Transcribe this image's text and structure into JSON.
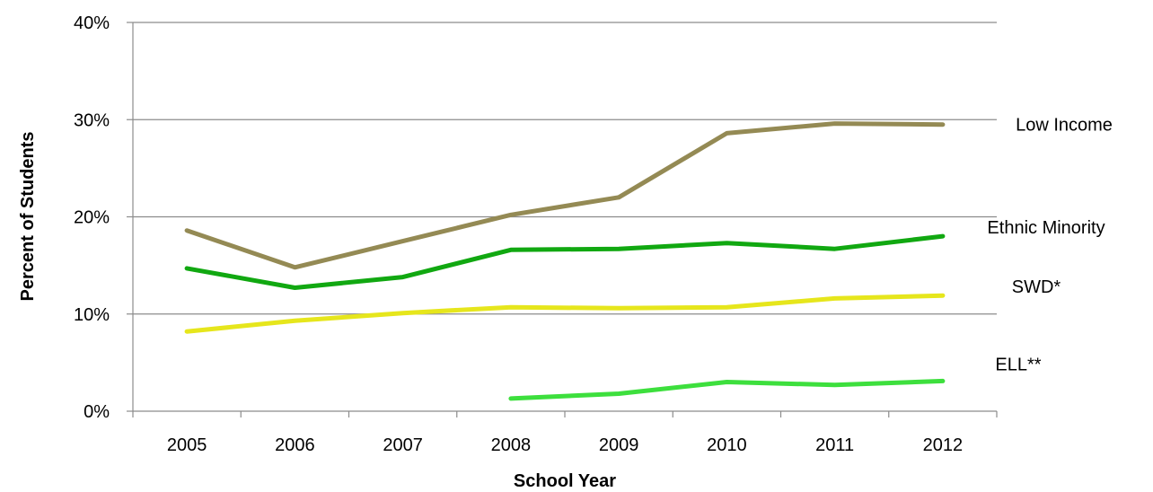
{
  "chart_data": {
    "type": "line",
    "title": "",
    "xlabel": "School Year",
    "ylabel": "Percent of Students",
    "categories": [
      "2005",
      "2006",
      "2007",
      "2008",
      "2009",
      "2010",
      "2011",
      "2012"
    ],
    "ylim": [
      0,
      40
    ],
    "yticks": [
      0,
      10,
      20,
      30,
      40
    ],
    "ytick_labels": [
      "0%",
      "10%",
      "20%",
      "30%",
      "40%"
    ],
    "grid": true,
    "legend": "series labels at right end of lines",
    "series": [
      {
        "name": "Low Income",
        "color": "#948a54",
        "values": [
          18.6,
          14.8,
          17.5,
          20.2,
          22.0,
          28.6,
          29.6,
          29.5
        ]
      },
      {
        "name": "Ethnic Minority",
        "color": "#11a811",
        "values": [
          14.7,
          12.7,
          13.8,
          16.6,
          16.7,
          17.3,
          16.7,
          18.0
        ]
      },
      {
        "name": "SWD*",
        "color": "#e6e61c",
        "values": [
          8.2,
          9.3,
          10.1,
          10.7,
          10.6,
          10.7,
          11.6,
          11.9
        ]
      },
      {
        "name": "ELL**",
        "color": "#3ddf3d",
        "values": [
          null,
          null,
          null,
          1.3,
          1.8,
          3.0,
          2.7,
          3.1
        ]
      }
    ]
  }
}
